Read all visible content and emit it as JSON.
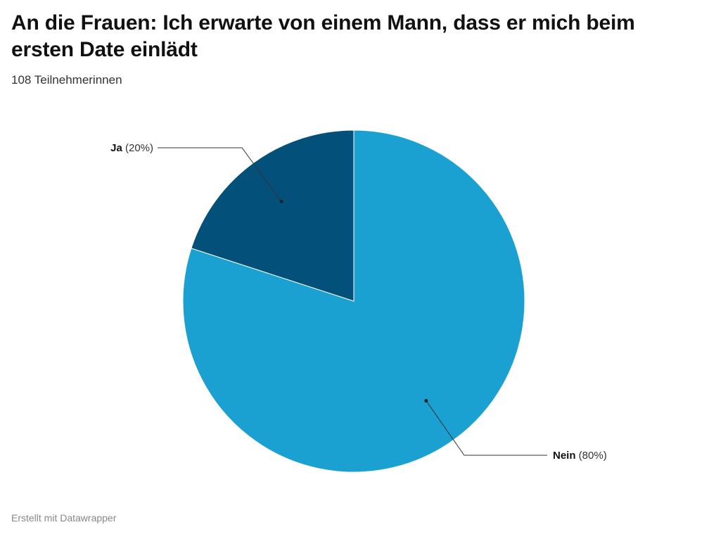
{
  "title": "An die Frauen: Ich erwarte von einem Mann, dass er mich beim ersten Date einlädt",
  "subtitle": "108 Teilnehmerinnen",
  "footer": "Erstellt mit Datawrapper",
  "chart_data": {
    "type": "pie",
    "categories": [
      "Ja",
      "Nein"
    ],
    "values": [
      20,
      80
    ],
    "value_labels": [
      "(20%)",
      "(80%)"
    ],
    "colors": [
      "#03517a",
      "#1ba1d1"
    ],
    "start": "12 o'clock",
    "direction": "counter-clockwise"
  }
}
